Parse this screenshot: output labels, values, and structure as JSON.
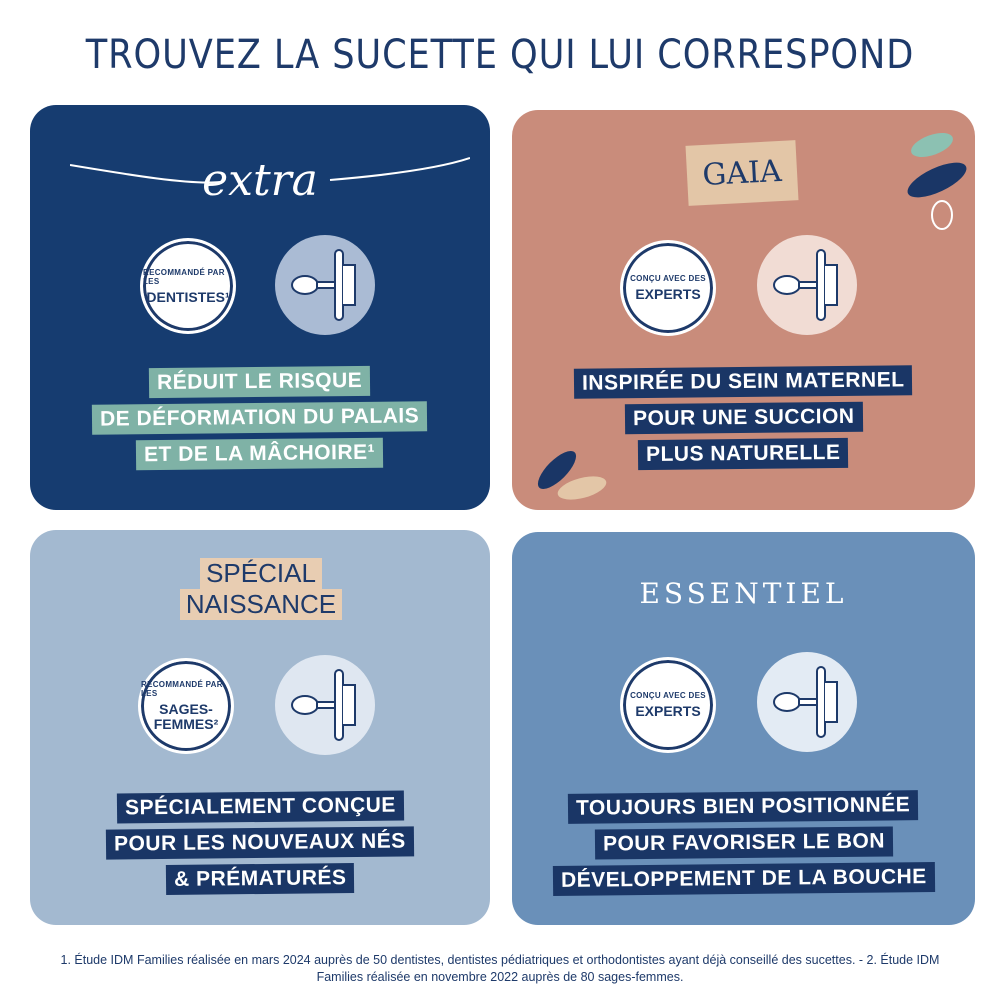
{
  "title": "TROUVEZ LA SUCETTE QUI LUI CORRESPOND",
  "panels": [
    {
      "brand": "extra",
      "badge_small": "RECOMMANDÉ PAR LES",
      "badge_big": "DENTISTES¹",
      "lines": [
        "RÉDUIT LE RISQUE",
        "DE DÉFORMATION DU PALAIS",
        "ET DE LA MÂCHOIRE¹"
      ],
      "color": "#163c70",
      "highlight": "#7fb2a6"
    },
    {
      "brand": "GAIA",
      "badge_small": "CONÇU AVEC DES",
      "badge_big": "EXPERTS",
      "lines": [
        "INSPIRÉE DU SEIN MATERNEL",
        "POUR UNE SUCCION",
        "PLUS NATURELLE"
      ],
      "color": "#c98c7b",
      "highlight": "#1a3666"
    },
    {
      "brand_lines": [
        "SPÉCIAL",
        "NAISSANCE"
      ],
      "badge_small": "RECOMMANDÉ PAR LES",
      "badge_big": "SAGES-FEMMES²",
      "lines": [
        "SPÉCIALEMENT CONÇUE",
        "POUR LES NOUVEAUX NÉS",
        "& PRÉMATURÉS"
      ],
      "color": "#a3b9d0",
      "highlight": "#1a3666"
    },
    {
      "brand": "ESSENTIEL",
      "badge_small": "CONÇU AVEC DES",
      "badge_big": "EXPERTS",
      "lines": [
        "TOUJOURS BIEN POSITIONNÉE",
        "POUR FAVORISER LE BON",
        "DÉVELOPPEMENT DE LA BOUCHE"
      ],
      "color": "#6a90b9",
      "highlight": "#1a3666"
    }
  ],
  "footnote": "1. Étude IDM Families réalisée en mars 2024 auprès de 50 dentistes, dentistes pédiatriques et orthodontistes ayant déjà conseillé des sucettes. - 2. Étude IDM Families réalisée en novembre 2022 auprès de 80 sages-femmes."
}
